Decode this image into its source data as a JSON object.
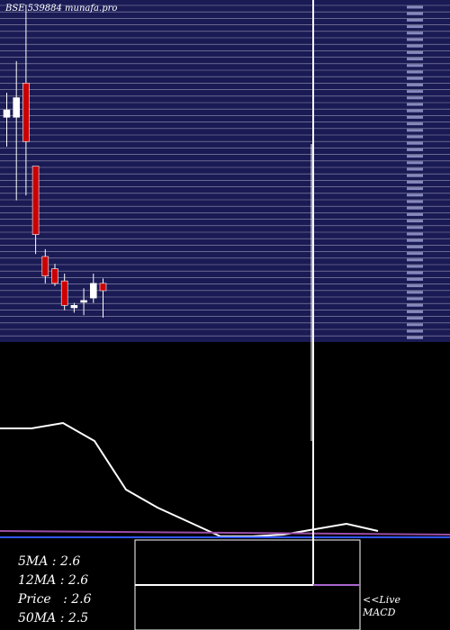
{
  "header": {
    "title": "BSE 539884  munafa.pro"
  },
  "stats": [
    {
      "label": "5MA",
      "value": "2.6"
    },
    {
      "label": "12MA",
      "value": "2.6"
    },
    {
      "label": "Price",
      "value": "2.6"
    },
    {
      "label": "50MA",
      "value": "2.5"
    }
  ],
  "live_label": "<<Live",
  "macd_label": "MACD",
  "colors": {
    "panel_bg": "#1a1a55",
    "grid": "#ffffff",
    "up": "#ffffff",
    "down": "#cc0000",
    "ma_line": "#ffffff",
    "ma_purple": "#9b4da6",
    "ma_blue": "#3355ff",
    "macd_purple": "#aa66cc"
  },
  "chart_data": {
    "type": "candlestick",
    "ylim": [
      2.2,
      3.6
    ],
    "candles": [
      {
        "open": 3.12,
        "high": 3.22,
        "low": 3.0,
        "close": 3.15
      },
      {
        "open": 3.12,
        "high": 3.35,
        "low": 2.78,
        "close": 3.2
      },
      {
        "open": 3.26,
        "high": 3.58,
        "low": 2.8,
        "close": 3.02
      },
      {
        "open": 2.92,
        "high": 2.92,
        "low": 2.56,
        "close": 2.64
      },
      {
        "open": 2.55,
        "high": 2.58,
        "low": 2.44,
        "close": 2.47
      },
      {
        "open": 2.5,
        "high": 2.52,
        "low": 2.43,
        "close": 2.44
      },
      {
        "open": 2.45,
        "high": 2.48,
        "low": 2.33,
        "close": 2.35
      },
      {
        "open": 2.34,
        "high": 2.36,
        "low": 2.32,
        "close": 2.35
      },
      {
        "open": 2.37,
        "high": 2.42,
        "low": 2.31,
        "close": 2.37
      },
      {
        "open": 2.38,
        "high": 2.48,
        "low": 2.36,
        "close": 2.44
      },
      {
        "open": 2.44,
        "high": 2.46,
        "low": 2.3,
        "close": 2.41
      }
    ],
    "ma_line": [
      3.12,
      3.12,
      3.15,
      3.05,
      2.78,
      2.68,
      2.6,
      2.52,
      2.52,
      2.53,
      2.56,
      2.59,
      2.55
    ],
    "ma_line_x": [
      0,
      1,
      2,
      3,
      4,
      5,
      6,
      7,
      8,
      9,
      10,
      11,
      12
    ]
  }
}
